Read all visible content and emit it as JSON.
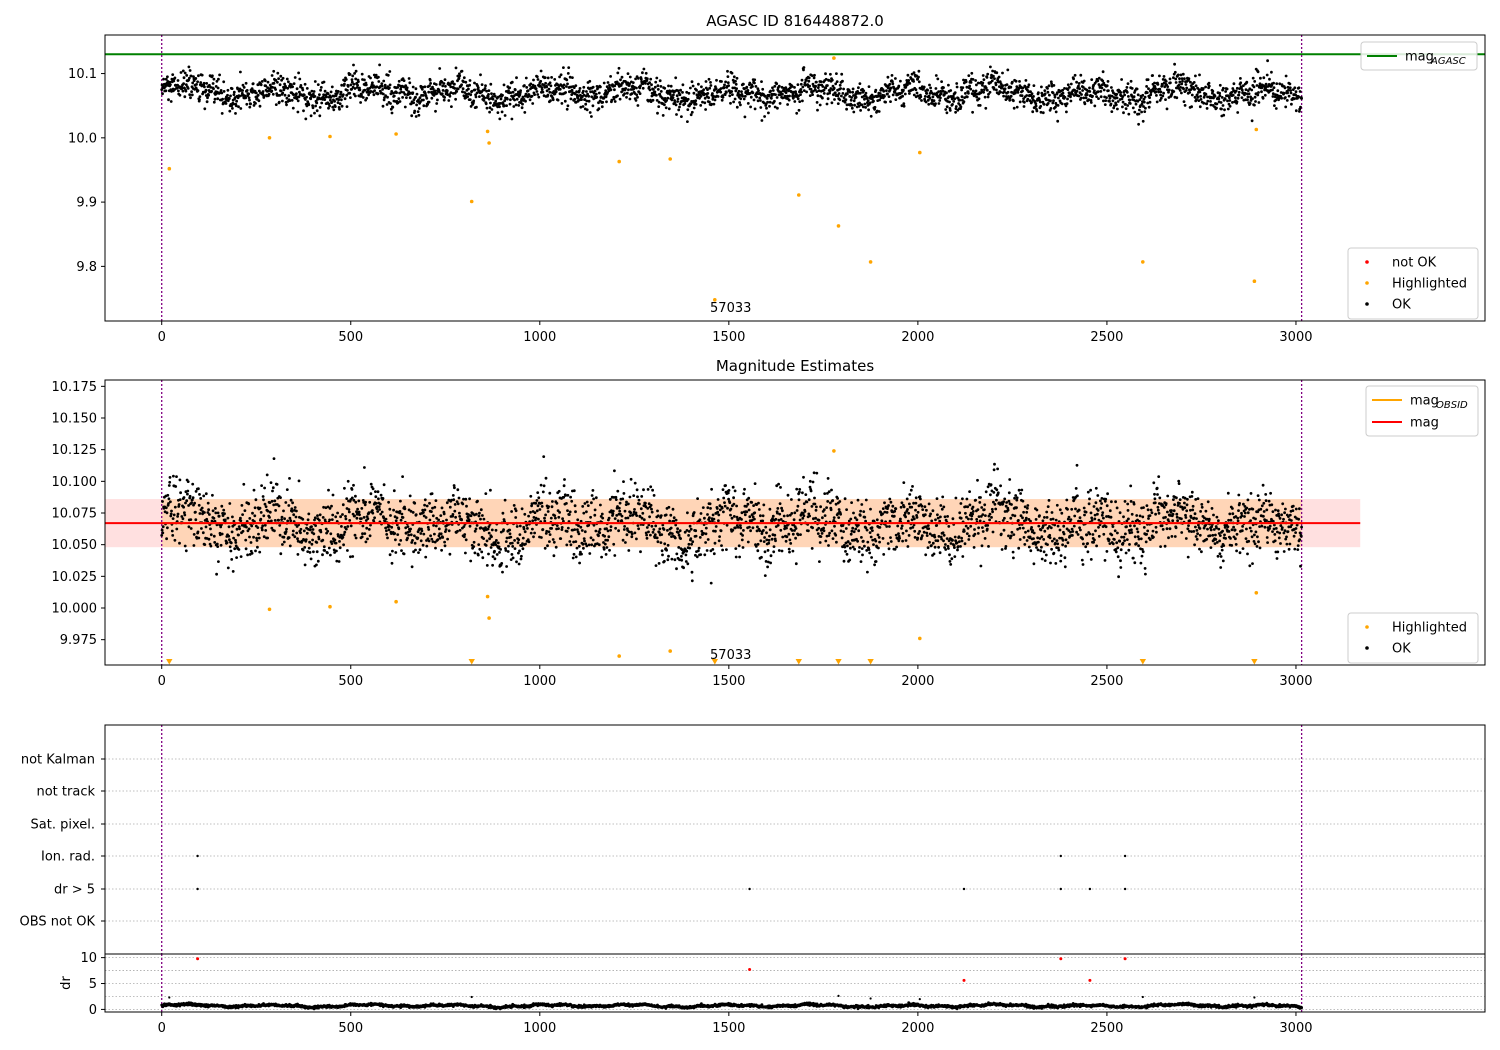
{
  "chart_data": [
    {
      "id": "top",
      "type": "scatter",
      "title": "AGASC ID 816448872.0",
      "xlim": [
        -150,
        3500
      ],
      "ylim": [
        9.715,
        10.16
      ],
      "x_ticks": [
        0,
        500,
        1000,
        1500,
        2000,
        2500,
        3000
      ],
      "y_ticks": [
        9.8,
        9.9,
        10.0,
        10.1
      ],
      "y_tick_decimals": 1,
      "boundaries": [
        0,
        3015
      ],
      "annotation": {
        "text": "57033",
        "x": 1505,
        "y": 9.72
      },
      "mag_agasc": 10.13,
      "ok_band": {
        "x_start": 0,
        "x_end": 3015,
        "center": 10.07,
        "amplitude": 0.018,
        "scatter": 0.014,
        "n": 3015
      },
      "highlighted": [
        [
          20,
          9.952
        ],
        [
          285,
          10.0
        ],
        [
          445,
          10.002
        ],
        [
          620,
          10.006
        ],
        [
          820,
          9.901
        ],
        [
          862,
          10.01
        ],
        [
          866,
          9.992
        ],
        [
          1210,
          9.963
        ],
        [
          1345,
          9.967
        ],
        [
          1463,
          9.748
        ],
        [
          1685,
          9.911
        ],
        [
          1778,
          10.124
        ],
        [
          1790,
          9.863
        ],
        [
          1875,
          9.807
        ],
        [
          2005,
          9.977
        ],
        [
          2595,
          9.807
        ],
        [
          2890,
          9.777
        ],
        [
          2895,
          10.013
        ]
      ],
      "legend_lines": [
        {
          "label": "mag",
          "sub": "AGASC",
          "color": "#008000"
        }
      ],
      "legend_points": [
        {
          "label": "not OK",
          "color": "#ff0000"
        },
        {
          "label": "Highlighted",
          "color": "#ffa500"
        },
        {
          "label": "OK",
          "color": "#000000"
        }
      ]
    },
    {
      "id": "middle",
      "type": "scatter",
      "title": "Magnitude Estimates",
      "xlim": [
        -150,
        3500
      ],
      "ylim": [
        9.955,
        10.18
      ],
      "x_ticks": [
        0,
        500,
        1000,
        1500,
        2000,
        2500,
        3000
      ],
      "y_ticks": [
        9.975,
        10.0,
        10.025,
        10.05,
        10.075,
        10.1,
        10.125,
        10.15,
        10.175
      ],
      "y_tick_decimals": 3,
      "boundaries": [
        0,
        3015
      ],
      "annotation": {
        "text": "57033",
        "x": 1505,
        "y": 9.958
      },
      "mag": 10.067,
      "mag_band": [
        10.048,
        10.086
      ],
      "mag_obsid": {
        "value": 10.067,
        "x_start": 0,
        "x_end": 3015,
        "band": [
          10.048,
          10.086
        ]
      },
      "band_x_end": 3170,
      "ok_band": {
        "x_start": 0,
        "x_end": 3015,
        "center": 10.066,
        "amplitude": 0.018,
        "scatter": 0.015,
        "n": 3015
      },
      "highlighted": [
        [
          285,
          9.999
        ],
        [
          445,
          10.001
        ],
        [
          620,
          10.005
        ],
        [
          862,
          10.009
        ],
        [
          866,
          9.992
        ],
        [
          1210,
          9.962
        ],
        [
          1345,
          9.966
        ],
        [
          1778,
          10.124
        ],
        [
          2005,
          9.976
        ],
        [
          2895,
          10.012
        ]
      ],
      "off_scale_x": [
        20,
        820,
        1463,
        1685,
        1790,
        1875,
        2595,
        2890
      ],
      "legend_lines": [
        {
          "label": "mag",
          "sub": "OBSID",
          "color": "#ffa500"
        },
        {
          "label": "mag",
          "sub": "",
          "color": "#ff0000"
        }
      ],
      "legend_points": [
        {
          "label": "Highlighted",
          "color": "#ffa500"
        },
        {
          "label": "OK",
          "color": "#000000"
        }
      ]
    },
    {
      "id": "flags",
      "type": "scatter",
      "xlim": [
        -150,
        3500
      ],
      "x_ticks": [
        0,
        500,
        1000,
        1500,
        2000,
        2500,
        3000
      ],
      "boundaries": [
        0,
        3015
      ],
      "categories": [
        "not Kalman",
        "not track",
        "Sat. pixel.",
        "Ion. rad.",
        "dr > 5",
        "OBS not OK"
      ],
      "flag_points": {
        "Ion. rad.": [
          95,
          2378,
          2548
        ],
        "dr > 5": [
          95,
          1555,
          2122,
          2378,
          2455,
          2548
        ]
      }
    },
    {
      "id": "dr",
      "type": "scatter",
      "ylabel": "dr",
      "xlim": [
        -150,
        3500
      ],
      "ylim": [
        -0.5,
        10.7
      ],
      "y_ticks": [
        0,
        5,
        10
      ],
      "boundaries": [
        0,
        3015
      ],
      "base_band": {
        "x_start": 0,
        "x_end": 3015,
        "center": 0.7,
        "amplitude": 0.35,
        "scatter": 0.12,
        "n": 3015
      },
      "large_dr": [
        [
          95,
          9.8
        ],
        [
          1555,
          7.7
        ],
        [
          2122,
          5.6
        ],
        [
          2378,
          9.8
        ],
        [
          2455,
          5.6
        ],
        [
          2548,
          9.8
        ]
      ],
      "moderate_dr": [
        [
          20,
          2.3
        ],
        [
          820,
          2.4
        ],
        [
          1790,
          2.6
        ],
        [
          1875,
          2.1
        ],
        [
          2005,
          2.0
        ],
        [
          2595,
          2.4
        ],
        [
          2890,
          2.3
        ]
      ]
    }
  ]
}
